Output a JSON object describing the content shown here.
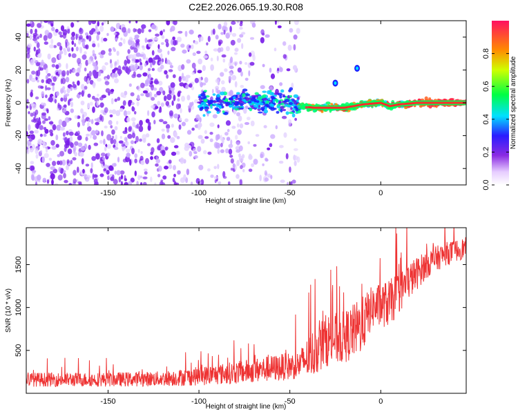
{
  "chart_data": [
    {
      "type": "heatmap",
      "title": "C2E2.2026.065.19.30.R08",
      "xlabel": "Height of straight line (km)",
      "ylabel": "Frequency (Hz)",
      "xlim": [
        -195,
        47
      ],
      "ylim": [
        -50,
        50
      ],
      "xticks": [
        -150,
        -100,
        -50,
        0
      ],
      "yticks": [
        -40,
        -20,
        0,
        20,
        40
      ],
      "ridge": [
        {
          "x": -100,
          "y": 0
        },
        {
          "x": -70,
          "y": 0
        },
        {
          "x": -50,
          "y": 1
        },
        {
          "x": -45,
          "y": -2
        },
        {
          "x": -37,
          "y": -3
        },
        {
          "x": -28,
          "y": -3
        },
        {
          "x": -20,
          "y": -3
        },
        {
          "x": -10,
          "y": -1
        },
        {
          "x": 0,
          "y": 0
        },
        {
          "x": 5,
          "y": -2
        },
        {
          "x": 10,
          "y": -1
        },
        {
          "x": 20,
          "y": 0
        },
        {
          "x": 47,
          "y": 0
        }
      ],
      "blobs": [
        {
          "x": -25,
          "y": 12,
          "amplitude": 0.5
        },
        {
          "x": -13,
          "y": 21,
          "amplitude": 0.25
        }
      ],
      "colorbar": {
        "label": "Normalized spectral amplitude",
        "range": [
          0,
          1
        ],
        "ticks": [
          "0.0",
          "0.2",
          "0.4",
          "0.6",
          "0.8"
        ]
      }
    },
    {
      "type": "line",
      "xlabel": "Height of straight line (km)",
      "ylabel": "SNR (10 * v/v)",
      "xlim": [
        -195,
        47
      ],
      "ylim": [
        0,
        1930
      ],
      "xticks": [
        -150,
        -100,
        -50,
        0
      ],
      "yticks": [
        500,
        1000,
        1500
      ],
      "series": [
        {
          "name": "SNR",
          "color": "#ee3333",
          "envelope": [
            {
              "x": -195,
              "mean": 160,
              "noise": 150
            },
            {
              "x": -150,
              "mean": 160,
              "noise": 150
            },
            {
              "x": -120,
              "mean": 170,
              "noise": 160
            },
            {
              "x": -100,
              "mean": 200,
              "noise": 200
            },
            {
              "x": -80,
              "mean": 240,
              "noise": 240
            },
            {
              "x": -60,
              "mean": 290,
              "noise": 280
            },
            {
              "x": -45,
              "mean": 330,
              "noise": 300
            },
            {
              "x": -38,
              "mean": 450,
              "noise": 500
            },
            {
              "x": -30,
              "mean": 620,
              "noise": 560
            },
            {
              "x": -20,
              "mean": 650,
              "noise": 560
            },
            {
              "x": -10,
              "mean": 800,
              "noise": 600
            },
            {
              "x": -5,
              "mean": 1000,
              "noise": 450
            },
            {
              "x": 5,
              "mean": 1050,
              "noise": 500
            },
            {
              "x": 15,
              "mean": 1300,
              "noise": 400
            },
            {
              "x": 25,
              "mean": 1500,
              "noise": 300
            },
            {
              "x": 35,
              "mean": 1620,
              "noise": 250
            },
            {
              "x": 47,
              "mean": 1700,
              "noise": 220
            }
          ]
        }
      ]
    }
  ]
}
